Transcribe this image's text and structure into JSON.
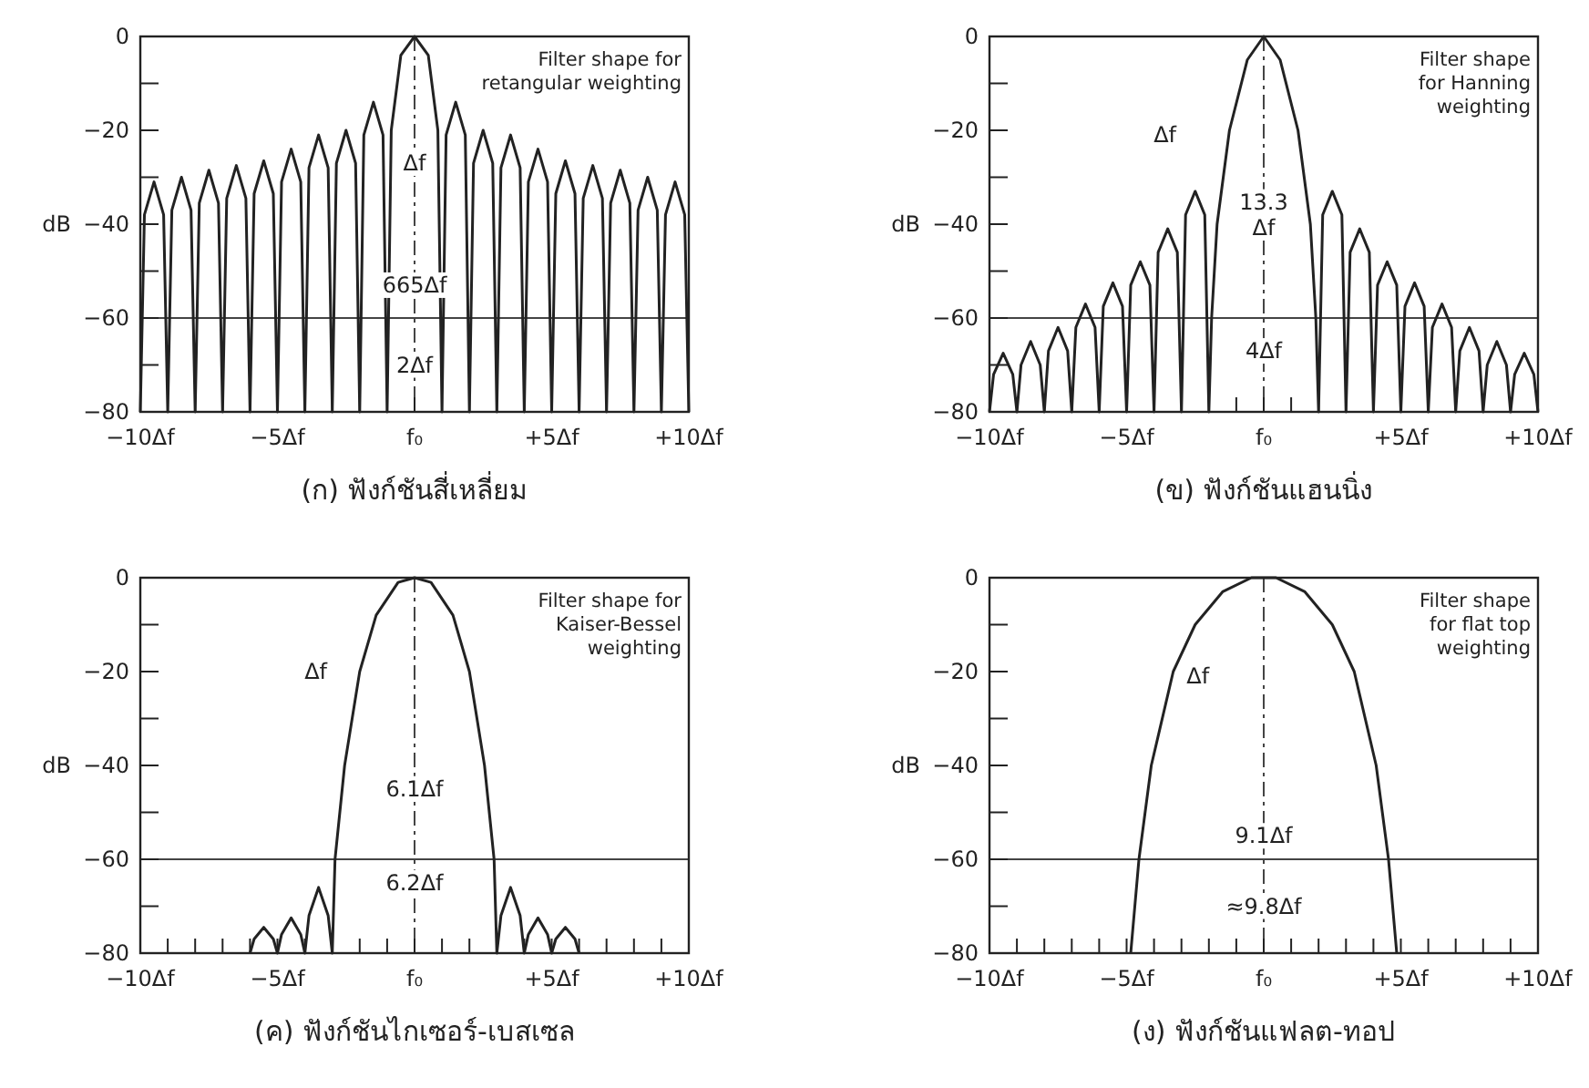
{
  "chart_data": [
    {
      "type": "line",
      "xlabel": "(ก) ฟังก์ชันสี่เหลี่ยม",
      "ylabel": "dB",
      "xlim": [
        -10,
        10
      ],
      "ylim": [
        -80,
        0
      ],
      "xticks": [
        {
          "value": -10,
          "label": "−10Δf"
        },
        {
          "value": -9,
          "label": null
        },
        {
          "value": -8,
          "label": null
        },
        {
          "value": -7,
          "label": null
        },
        {
          "value": -6,
          "label": null
        },
        {
          "value": -5,
          "label": "−5Δf"
        },
        {
          "value": -4,
          "label": null
        },
        {
          "value": -3,
          "label": null
        },
        {
          "value": -2,
          "label": null
        },
        {
          "value": -1,
          "label": null
        },
        {
          "value": 0,
          "label": "f₀"
        },
        {
          "value": 1,
          "label": null
        },
        {
          "value": 2,
          "label": null
        },
        {
          "value": 3,
          "label": null
        },
        {
          "value": 4,
          "label": null
        },
        {
          "value": 5,
          "label": "+5Δf"
        },
        {
          "value": 6,
          "label": null
        },
        {
          "value": 7,
          "label": null
        },
        {
          "value": 8,
          "label": null
        },
        {
          "value": 9,
          "label": null
        },
        {
          "value": 10,
          "label": "+10Δf"
        }
      ],
      "yticks": [
        0,
        {
          "value": -10,
          "label": null
        },
        -20,
        {
          "value": -30,
          "label": null
        },
        -40,
        {
          "value": -50,
          "label": null
        },
        -60,
        {
          "value": -70,
          "label": null
        },
        -80
      ],
      "series": [
        {
          "color": "#222222",
          "x": [
            -10,
            -9.85,
            -9.5,
            -9.15,
            -9,
            -8.85,
            -8.5,
            -8.15,
            -8,
            -7.85,
            -7.5,
            -7.15,
            -7,
            -6.85,
            -6.5,
            -6.15,
            -6,
            -5.85,
            -5.5,
            -5.15,
            -5,
            -4.85,
            -4.5,
            -4.15,
            -4,
            -3.85,
            -3.5,
            -3.15,
            -3,
            -2.85,
            -2.5,
            -2.15,
            -2,
            -1.85,
            -1.5,
            -1.15,
            -1,
            -0.85,
            -0.5,
            0,
            0.5,
            0.85,
            1,
            1.15,
            1.5,
            1.85,
            2,
            2.15,
            2.5,
            2.85,
            3,
            3.15,
            3.5,
            3.85,
            4,
            4.15,
            4.5,
            4.85,
            5,
            5.15,
            5.5,
            5.85,
            6,
            6.15,
            6.5,
            6.85,
            7,
            7.15,
            7.5,
            7.85,
            8,
            8.15,
            8.5,
            8.85,
            9,
            9.15,
            9.5,
            9.85,
            10
          ],
          "values": [
            -80,
            -38,
            -31,
            -38,
            -80,
            -37,
            -30,
            -37,
            -80,
            -35.5,
            -28.5,
            -35.5,
            -80,
            -34.5,
            -27.5,
            -34.5,
            -80,
            -33.5,
            -26.5,
            -33.5,
            -80,
            -31,
            -24,
            -31,
            -80,
            -28,
            -21,
            -28,
            -80,
            -27,
            -20,
            -27,
            -80,
            -21,
            -14,
            -21,
            -80,
            -20,
            -4,
            0,
            -4,
            -20,
            -80,
            -21,
            -14,
            -21,
            -80,
            -27,
            -20,
            -27,
            -80,
            -28,
            -21,
            -28,
            -80,
            -31,
            -24,
            -31,
            -80,
            -33.5,
            -26.5,
            -33.5,
            -80,
            -34.5,
            -27.5,
            -34.5,
            -80,
            -35.5,
            -28.5,
            -35.5,
            -80,
            -37,
            -30,
            -37,
            -80,
            -38,
            -31,
            -38,
            -80
          ]
        }
      ],
      "ref_lines": [
        {
          "axis": "y",
          "value": -60,
          "color": "#444444"
        },
        {
          "axis": "x",
          "value": 0,
          "line_style": "dashed",
          "color": "#444444"
        }
      ],
      "annotations": [
        "Filter shape for\nretangular weighting",
        {
          "text": "Δf",
          "x": 0,
          "y": -27
        },
        {
          "text": "665Δf",
          "x": 0,
          "y": -53
        },
        {
          "text": "2Δf",
          "x": 0,
          "y": -70
        }
      ]
    },
    {
      "type": "line",
      "xlabel": "(ข) ฟังก์ชันแฮนนิ่ง",
      "ylabel": "dB",
      "xlim": [
        -10,
        10
      ],
      "ylim": [
        -80,
        0
      ],
      "xticks": [
        {
          "value": -10,
          "label": "−10Δf"
        },
        {
          "value": -9,
          "label": null
        },
        {
          "value": -8,
          "label": null
        },
        {
          "value": -7,
          "label": null
        },
        {
          "value": -6,
          "label": null
        },
        {
          "value": -5,
          "label": "−5Δf"
        },
        {
          "value": -4,
          "label": null
        },
        {
          "value": -3,
          "label": null
        },
        {
          "value": -2,
          "label": null
        },
        {
          "value": -1,
          "label": null
        },
        {
          "value": 0,
          "label": "f₀"
        },
        {
          "value": 1,
          "label": null
        },
        {
          "value": 2,
          "label": null
        },
        {
          "value": 3,
          "label": null
        },
        {
          "value": 4,
          "label": null
        },
        {
          "value": 5,
          "label": "+5Δf"
        },
        {
          "value": 6,
          "label": null
        },
        {
          "value": 7,
          "label": null
        },
        {
          "value": 8,
          "label": null
        },
        {
          "value": 9,
          "label": null
        },
        {
          "value": 10,
          "label": "+10Δf"
        }
      ],
      "yticks": [
        0,
        {
          "value": -10,
          "label": null
        },
        -20,
        {
          "value": -30,
          "label": null
        },
        -40,
        {
          "value": -50,
          "label": null
        },
        -60,
        {
          "value": -70,
          "label": null
        },
        -80
      ],
      "series": [
        {
          "color": "#222222",
          "x": [
            -10,
            -9.85,
            -9.5,
            -9.15,
            -9,
            -8.85,
            -8.5,
            -8.15,
            -8,
            -7.85,
            -7.5,
            -7.15,
            -7,
            -6.85,
            -6.5,
            -6.15,
            -6,
            -5.85,
            -5.5,
            -5.15,
            -5,
            -4.85,
            -4.5,
            -4.15,
            -4,
            -3.85,
            -3.5,
            -3.15,
            -3,
            -2.85,
            -2.5,
            -2.15,
            -2,
            -1.9,
            -1.7,
            -1.25,
            -0.6,
            0,
            0.6,
            1.25,
            1.7,
            1.9,
            2,
            2.15,
            2.5,
            2.85,
            3,
            3.15,
            3.5,
            3.85,
            4,
            4.15,
            4.5,
            4.85,
            5,
            5.15,
            5.5,
            5.85,
            6,
            6.15,
            6.5,
            6.85,
            7,
            7.15,
            7.5,
            7.85,
            8,
            8.15,
            8.5,
            8.85,
            9,
            9.15,
            9.5,
            9.85,
            10
          ],
          "values": [
            -80,
            -72,
            -67.5,
            -72,
            -80,
            -70,
            -65,
            -70,
            -80,
            -67,
            -62,
            -67,
            -80,
            -62,
            -57,
            -62,
            -80,
            -57.5,
            -52.5,
            -57.5,
            -80,
            -53,
            -48,
            -53,
            -80,
            -46,
            -41,
            -46,
            -80,
            -38,
            -33,
            -38,
            -80,
            -60,
            -40,
            -20,
            -5,
            0,
            -5,
            -20,
            -40,
            -60,
            -80,
            -38,
            -33,
            -38,
            -80,
            -46,
            -41,
            -46,
            -80,
            -53,
            -48,
            -53,
            -80,
            -57.5,
            -52.5,
            -57.5,
            -80,
            -62,
            -57,
            -62,
            -80,
            -67,
            -62,
            -67,
            -80,
            -70,
            -65,
            -70,
            -80,
            -72,
            -67.5,
            -72,
            -80
          ]
        }
      ],
      "ref_lines": [
        {
          "axis": "y",
          "value": -60,
          "color": "#444444"
        },
        {
          "axis": "x",
          "value": 0,
          "line_style": "dashed",
          "color": "#444444"
        }
      ],
      "annotations": [
        "Filter shape\nfor Hanning\nweighting",
        {
          "text": "Δf",
          "x": -3.6,
          "y": -21
        },
        {
          "text": "13.3\nΔf",
          "x": 0,
          "y": -38
        },
        {
          "text": "4Δf",
          "x": 0,
          "y": -67
        }
      ]
    },
    {
      "type": "line",
      "xlabel": "(ค) ฟังก์ชันไกเซอร์-เบสเซล",
      "ylabel": "dB",
      "xlim": [
        -10,
        10
      ],
      "ylim": [
        -80,
        0
      ],
      "xticks": [
        {
          "value": -10,
          "label": "−10Δf"
        },
        {
          "value": -9,
          "label": null
        },
        {
          "value": -8,
          "label": null
        },
        {
          "value": -7,
          "label": null
        },
        {
          "value": -6,
          "label": null
        },
        {
          "value": -5,
          "label": "−5Δf"
        },
        {
          "value": -4,
          "label": null
        },
        {
          "value": -3,
          "label": null
        },
        {
          "value": -2,
          "label": null
        },
        {
          "value": -1,
          "label": null
        },
        {
          "value": 0,
          "label": "f₀"
        },
        {
          "value": 1,
          "label": null
        },
        {
          "value": 2,
          "label": null
        },
        {
          "value": 3,
          "label": null
        },
        {
          "value": 4,
          "label": null
        },
        {
          "value": 5,
          "label": "+5Δf"
        },
        {
          "value": 6,
          "label": null
        },
        {
          "value": 7,
          "label": null
        },
        {
          "value": 8,
          "label": null
        },
        {
          "value": 9,
          "label": null
        },
        {
          "value": 10,
          "label": "+10Δf"
        }
      ],
      "yticks": [
        0,
        {
          "value": -10,
          "label": null
        },
        -20,
        {
          "value": -30,
          "label": null
        },
        -40,
        {
          "value": -50,
          "label": null
        },
        -60,
        {
          "value": -70,
          "label": null
        },
        -80
      ],
      "series": [
        {
          "color": "#222222",
          "x": [
            -6,
            -5.85,
            -5.5,
            -5.15,
            -5,
            -4.85,
            -4.5,
            -4.15,
            -4,
            -3.85,
            -3.5,
            -3.15,
            -3,
            -2.9,
            -2.55,
            -2,
            -1.4,
            -0.6,
            0,
            0.6,
            1.4,
            2,
            2.55,
            2.9,
            3,
            3.15,
            3.5,
            3.85,
            4,
            4.15,
            4.5,
            4.85,
            5,
            5.15,
            5.5,
            5.85,
            6
          ],
          "values": [
            -80,
            -77,
            -74.5,
            -77,
            -80,
            -76,
            -72.5,
            -76,
            -80,
            -72,
            -66,
            -72,
            -80,
            -60,
            -40,
            -20,
            -8,
            -1,
            0,
            -1,
            -8,
            -20,
            -40,
            -60,
            -80,
            -72,
            -66,
            -72,
            -80,
            -76,
            -72.5,
            -76,
            -80,
            -77,
            -74.5,
            -77,
            -80
          ]
        }
      ],
      "ref_lines": [
        {
          "axis": "y",
          "value": -60,
          "color": "#444444"
        },
        {
          "axis": "x",
          "value": 0,
          "line_style": "dashed",
          "color": "#444444"
        }
      ],
      "annotations": [
        "Filter shape for\nKaiser-Bessel\nweighting",
        {
          "text": "Δf",
          "x": -3.6,
          "y": -20
        },
        {
          "text": "6.1Δf",
          "x": 0,
          "y": -45
        },
        {
          "text": "6.2Δf",
          "x": 0,
          "y": -65
        }
      ]
    },
    {
      "type": "line",
      "xlabel": "(ง) ฟังก์ชันแฟลต-ทอป",
      "ylabel": "dB",
      "xlim": [
        -10,
        10
      ],
      "ylim": [
        -80,
        0
      ],
      "xticks": [
        {
          "value": -10,
          "label": "−10Δf"
        },
        {
          "value": -9,
          "label": null
        },
        {
          "value": -8,
          "label": null
        },
        {
          "value": -7,
          "label": null
        },
        {
          "value": -6,
          "label": null
        },
        {
          "value": -5,
          "label": "−5Δf"
        },
        {
          "value": -4,
          "label": null
        },
        {
          "value": -3,
          "label": null
        },
        {
          "value": -2,
          "label": null
        },
        {
          "value": -1,
          "label": null
        },
        {
          "value": 0,
          "label": "f₀"
        },
        {
          "value": 1,
          "label": null
        },
        {
          "value": 2,
          "label": null
        },
        {
          "value": 3,
          "label": null
        },
        {
          "value": 4,
          "label": null
        },
        {
          "value": 5,
          "label": "+5Δf"
        },
        {
          "value": 6,
          "label": null
        },
        {
          "value": 7,
          "label": null
        },
        {
          "value": 8,
          "label": null
        },
        {
          "value": 9,
          "label": null
        },
        {
          "value": 10,
          "label": "+10Δf"
        }
      ],
      "yticks": [
        0,
        {
          "value": -10,
          "label": null
        },
        -20,
        {
          "value": -30,
          "label": null
        },
        -40,
        {
          "value": -50,
          "label": null
        },
        -60,
        {
          "value": -70,
          "label": null
        },
        -80
      ],
      "series": [
        {
          "color": "#222222",
          "x": [
            -4.85,
            -4.55,
            -4.1,
            -3.3,
            -2.5,
            -1.5,
            -0.45,
            0.45,
            1.5,
            2.5,
            3.3,
            4.1,
            4.55,
            4.85
          ],
          "values": [
            -80,
            -60,
            -40,
            -20,
            -10,
            -3,
            0,
            0,
            -3,
            -10,
            -20,
            -40,
            -60,
            -80
          ]
        }
      ],
      "ref_lines": [
        {
          "axis": "y",
          "value": -60,
          "color": "#444444"
        },
        {
          "axis": "x",
          "value": 0,
          "line_style": "dashed",
          "color": "#444444"
        }
      ],
      "annotations": [
        "Filter shape\nfor flat top\nweighting",
        {
          "text": "Δf",
          "x": -2.4,
          "y": -21
        },
        {
          "text": "9.1Δf",
          "x": 0,
          "y": -55
        },
        {
          "text": "≈9.8Δf",
          "x": 0,
          "y": -70
        }
      ]
    }
  ]
}
